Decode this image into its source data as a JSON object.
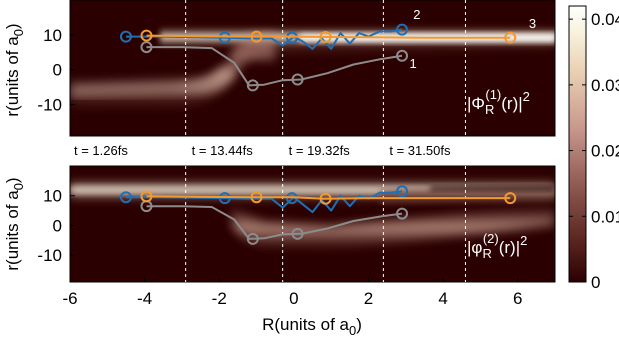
{
  "chart_data": [
    {
      "type": "heatmap",
      "panel": "top",
      "formula": "|Φ_R^(1)(r)|²",
      "formula_main": "|Φ",
      "formula_sub": "R",
      "formula_sup": "(1)",
      "formula_tail": "(r)|",
      "formula_pow": "2",
      "ylabel": "r(units of a0)",
      "ylabel_main": "r(units of a",
      "ylabel_sub": "0",
      "ylabel_tail": ")",
      "ylim": [
        -19,
        20
      ],
      "yticks": [
        "10",
        "0",
        "-10"
      ],
      "xlim": [
        -6,
        7
      ],
      "series": [
        {
          "name": "1",
          "color": "#8c8c8c",
          "x": [
            -3.95,
            -3.0,
            -2.2,
            -1.6,
            -1.2,
            -0.8,
            -0.3,
            0.2,
            0.9,
            1.6,
            2.3,
            2.9
          ],
          "y": [
            6.5,
            6.5,
            6.2,
            2.0,
            -4.5,
            -4.3,
            -3.0,
            -2.8,
            -1.0,
            1.5,
            3.0,
            4.0
          ],
          "markers_x": [
            -3.95,
            -1.1,
            0.1,
            2.9
          ],
          "markers_y": [
            6.5,
            -4.5,
            -2.8,
            4.0
          ]
        },
        {
          "name": "2",
          "color": "#1f6fb4",
          "x": [
            -4.5,
            -3.5,
            -2.5,
            -1.85,
            -1.2,
            -0.6,
            -0.3,
            0.0,
            0.25,
            0.5,
            0.75,
            1.0,
            1.25,
            1.5,
            1.75,
            2.0,
            2.3,
            2.6,
            2.9
          ],
          "y": [
            9.5,
            9.5,
            9.3,
            9.2,
            9.0,
            9.0,
            7.0,
            9.5,
            8.0,
            6.0,
            9.0,
            6.0,
            10.5,
            7.5,
            10.5,
            9.5,
            11.0,
            11.0,
            11.5
          ],
          "markers_x": [
            -4.5,
            -1.85,
            -0.05,
            2.9
          ],
          "markers_y": [
            9.5,
            9.2,
            9.2,
            11.5
          ]
        },
        {
          "name": "3",
          "color": "#f39a2e",
          "x": [
            -3.95,
            -2.5,
            -1.0,
            0.0,
            0.8,
            2.0,
            3.5,
            5.8
          ],
          "y": [
            9.8,
            9.6,
            9.5,
            9.5,
            9.4,
            9.3,
            9.2,
            9.2
          ],
          "markers_x": [
            -3.95,
            -1.0,
            0.85,
            5.8
          ],
          "markers_y": [
            9.8,
            9.5,
            9.4,
            9.2
          ]
        }
      ],
      "labels": [
        {
          "text": "1",
          "x": 3.1,
          "y": 0.5
        },
        {
          "text": "2",
          "x": 3.2,
          "y": 14.5
        },
        {
          "text": "3",
          "x": 6.3,
          "y": 12.0
        }
      ]
    },
    {
      "type": "heatmap",
      "panel": "bottom",
      "formula": "|φ_R^(2)(r)|²",
      "formula_main": "|φ",
      "formula_sub": "R",
      "formula_sup": "(2)",
      "formula_tail": "(r)|",
      "formula_pow": "2",
      "ylabel": "r(units of a0)",
      "ylabel_main": "r(units of a",
      "ylabel_sub": "0",
      "ylabel_tail": ")",
      "ylim": [
        -19,
        20
      ],
      "yticks": [
        "10",
        "0",
        "-10"
      ],
      "xlabel": "R(units of a0)",
      "xlabel_main": "R(units of a",
      "xlabel_sub": "0",
      "xlabel_tail": ")",
      "xlim": [
        -6,
        7
      ],
      "xticks": [
        "-6",
        "-4",
        "-2",
        "0",
        "2",
        "4",
        "6"
      ],
      "series": [
        {
          "color": "#8c8c8c",
          "x": [
            -3.95,
            -3.0,
            -2.2,
            -1.6,
            -1.2,
            -0.8,
            -0.3,
            0.2,
            0.9,
            1.6,
            2.3,
            2.9
          ],
          "y": [
            6.5,
            6.5,
            6.2,
            2.0,
            -4.5,
            -4.3,
            -3.0,
            -2.8,
            -1.0,
            1.5,
            3.0,
            4.0
          ],
          "markers_x": [
            -3.95,
            -1.1,
            0.1,
            2.9
          ],
          "markers_y": [
            6.5,
            -4.5,
            -2.8,
            4.0
          ]
        },
        {
          "color": "#1f6fb4",
          "x": [
            -4.5,
            -3.5,
            -2.5,
            -1.85,
            -1.2,
            -0.6,
            -0.3,
            0.0,
            0.25,
            0.5,
            0.75,
            1.0,
            1.25,
            1.5,
            1.75,
            2.0,
            2.3,
            2.6,
            2.9
          ],
          "y": [
            9.5,
            9.5,
            9.3,
            9.2,
            9.0,
            9.0,
            6.0,
            9.5,
            7.0,
            4.5,
            8.5,
            5.0,
            10.0,
            6.5,
            10.0,
            9.0,
            11.0,
            11.0,
            11.5
          ],
          "markers_x": [
            -4.5,
            -1.85,
            -0.05,
            2.9
          ],
          "markers_y": [
            9.5,
            9.2,
            9.2,
            11.5
          ]
        },
        {
          "color": "#f39a2e",
          "x": [
            -3.95,
            -2.5,
            -1.0,
            0.0,
            0.8,
            2.0,
            3.5,
            5.8
          ],
          "y": [
            9.8,
            9.6,
            9.5,
            9.5,
            9.0,
            9.2,
            9.2,
            9.2
          ],
          "markers_x": [
            -3.95,
            -1.0,
            0.85,
            5.8
          ],
          "markers_y": [
            9.8,
            9.5,
            9.0,
            9.2
          ]
        }
      ]
    }
  ],
  "time_markers": [
    {
      "x": -2.9,
      "label": "t = 1.26fs"
    },
    {
      "x": -0.3,
      "label": "t = 13.44fs"
    },
    {
      "x": 2.4,
      "label": "t = 19.32fs"
    },
    {
      "x": 4.6,
      "label": "t = 31.50fs"
    }
  ],
  "colorbar": {
    "min": 0,
    "max": 0.042,
    "ticks": [
      "0.04",
      "0.03",
      "0.02",
      "0.01",
      "0"
    ],
    "tick_values": [
      0.04,
      0.03,
      0.02,
      0.01,
      0
    ],
    "colors": [
      "#2b0000",
      "#5a2a22",
      "#a0675c",
      "#d4a39a",
      "#efd9bd",
      "#fbf6e8",
      "#ffffff"
    ]
  }
}
